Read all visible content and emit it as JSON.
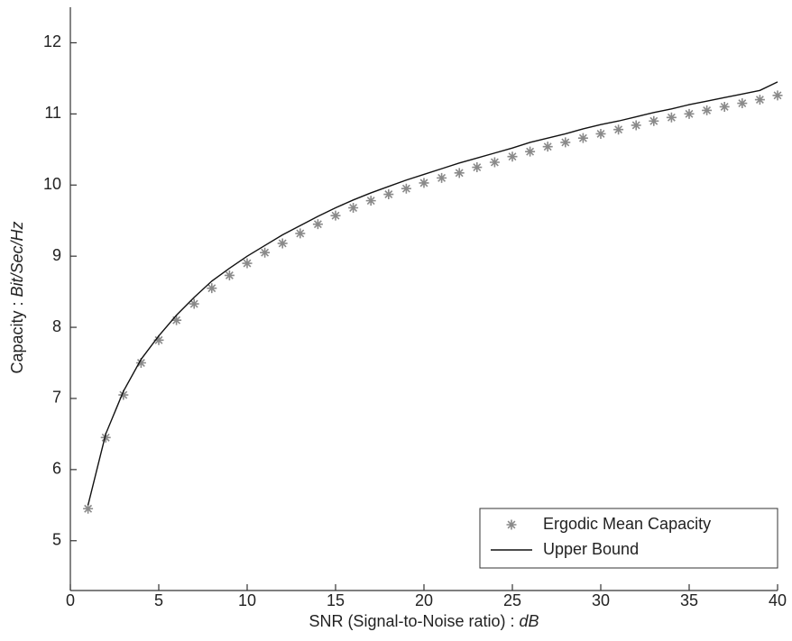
{
  "chart_data": {
    "type": "line",
    "x_label": {
      "text": "SNR (Signal-to-Noise ratio) :",
      "unit": "dB"
    },
    "y_label": {
      "text": "Capacity :",
      "unit": "Bit/Sec/Hz"
    },
    "x": [
      1,
      2,
      3,
      4,
      5,
      6,
      7,
      8,
      9,
      10,
      11,
      12,
      13,
      14,
      15,
      16,
      17,
      18,
      19,
      20,
      21,
      22,
      23,
      24,
      25,
      26,
      27,
      28,
      29,
      30,
      31,
      32,
      33,
      34,
      35,
      36,
      37,
      38,
      39,
      40
    ],
    "series": [
      {
        "name": "Ergodic Mean Capacity",
        "color": "#8a8a8a",
        "mode": "markers",
        "values": [
          5.45,
          6.45,
          7.05,
          7.5,
          7.82,
          8.1,
          8.33,
          8.55,
          8.73,
          8.9,
          9.05,
          9.18,
          9.32,
          9.45,
          9.57,
          9.68,
          9.78,
          9.87,
          9.95,
          10.03,
          10.1,
          10.17,
          10.25,
          10.32,
          10.4,
          10.47,
          10.54,
          10.6,
          10.66,
          10.72,
          10.78,
          10.84,
          10.9,
          10.95,
          11.0,
          11.05,
          11.1,
          11.15,
          11.2,
          11.26
        ]
      },
      {
        "name": "Upper Bound",
        "color": "#111111",
        "mode": "line",
        "values": [
          5.5,
          6.5,
          7.1,
          7.55,
          7.88,
          8.17,
          8.42,
          8.65,
          8.83,
          9.0,
          9.15,
          9.3,
          9.43,
          9.56,
          9.68,
          9.79,
          9.89,
          9.98,
          10.07,
          10.15,
          10.23,
          10.31,
          10.38,
          10.45,
          10.52,
          10.6,
          10.66,
          10.72,
          10.79,
          10.85,
          10.9,
          10.96,
          11.02,
          11.07,
          11.13,
          11.18,
          11.23,
          11.28,
          11.33,
          11.45
        ]
      }
    ],
    "xlim": [
      0,
      40
    ],
    "xticks": [
      0,
      5,
      10,
      15,
      20,
      25,
      30,
      35,
      40
    ],
    "ylim": [
      4.3,
      12.5
    ],
    "yticks": [
      5,
      6,
      7,
      8,
      9,
      10,
      11,
      12
    ],
    "legend": "lower right"
  }
}
